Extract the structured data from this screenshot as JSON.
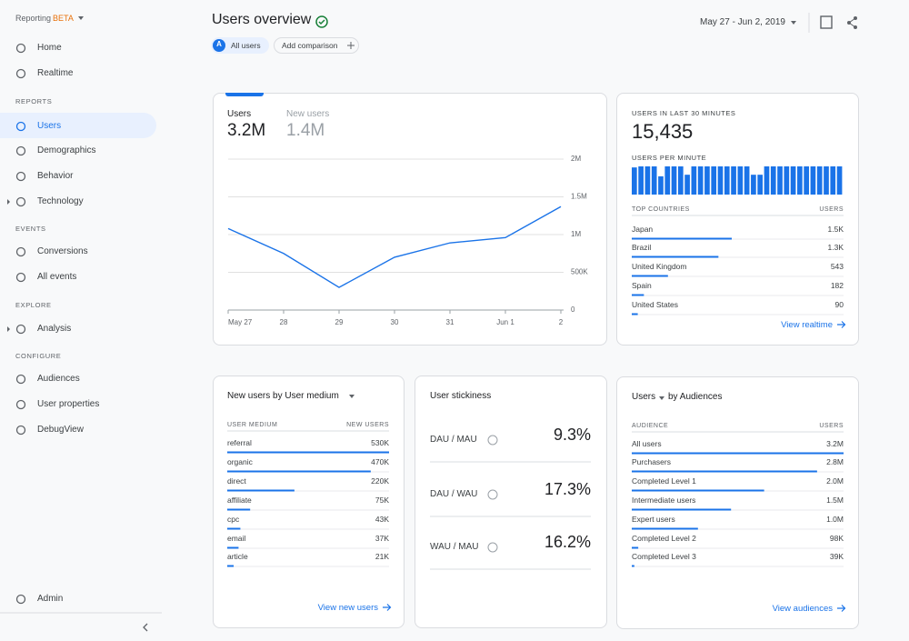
{
  "sidebar": {
    "product": "Reporting",
    "badge": "BETA",
    "nav": [
      "Home",
      "Realtime"
    ],
    "sections": [
      {
        "title": "REPORTS",
        "items": [
          "Users",
          "Demographics",
          "Behavior",
          "Technology"
        ]
      },
      {
        "title": "EVENTS",
        "items": [
          "Conversions",
          "All events"
        ]
      },
      {
        "title": "EXPLORE",
        "items": [
          "Analysis"
        ]
      },
      {
        "title": "CONFIGURE",
        "items": [
          "Audiences",
          "User properties",
          "DebugView"
        ]
      }
    ],
    "admin": "Admin"
  },
  "header": {
    "title": "Users overview",
    "segment_badge": "A",
    "segment": "All users",
    "add_comparison": "Add comparison",
    "date_range": "May 27 - Jun 2, 2019"
  },
  "users_card": {
    "tabs": [
      {
        "label": "Users",
        "value": "3.2M"
      },
      {
        "label": "New users",
        "value": "1.4M"
      }
    ]
  },
  "chart_data": [
    {
      "type": "line",
      "categories": [
        "May 27",
        "28",
        "29",
        "30",
        "31",
        "Jun 1",
        "2"
      ],
      "values": [
        1080000,
        750000,
        300000,
        700000,
        890000,
        960000,
        1370000
      ],
      "color": "#1a73e8",
      "ylim": [
        0,
        2000000
      ],
      "yticks": [
        0,
        {
          "value": 500000,
          "label": "500K"
        },
        {
          "value": 1000000,
          "label": "1M"
        },
        {
          "value": 1500000,
          "label": "1.5M"
        },
        {
          "value": 2000000,
          "label": "2M"
        }
      ],
      "grid": true,
      "y_axis_side": "right"
    },
    {
      "type": "bar",
      "title": "USERS PER MINUTE",
      "color": "#1a73e8",
      "values": [
        520,
        540,
        540,
        540,
        350,
        540,
        540,
        540,
        380,
        540,
        540,
        540,
        540,
        540,
        540,
        540,
        540,
        540,
        380,
        380,
        540,
        540,
        540,
        540,
        540,
        540,
        540,
        540,
        540,
        540,
        540,
        540
      ]
    }
  ],
  "realtime": {
    "title": "USERS IN LAST 30 MINUTES",
    "value": "15,435",
    "col_name": "TOP COUNTRIES",
    "col_value": "USERS",
    "rows": [
      {
        "name": "Japan",
        "value": 1500,
        "label": "1.5K"
      },
      {
        "name": "Brazil",
        "value": 1300,
        "label": "1.3K"
      },
      {
        "name": "United Kingdom",
        "value": 543,
        "label": "543"
      },
      {
        "name": "Spain",
        "value": 182,
        "label": "182"
      },
      {
        "name": "United States",
        "value": 90,
        "label": "90"
      }
    ],
    "link": "View realtime"
  },
  "medium": {
    "title": "New users by User medium",
    "col_name": "USER MEDIUM",
    "col_value": "NEW USERS",
    "rows": [
      {
        "name": "referral",
        "value": 530000,
        "label": "530K"
      },
      {
        "name": "organic",
        "value": 470000,
        "label": "470K"
      },
      {
        "name": "direct",
        "value": 220000,
        "label": "220K"
      },
      {
        "name": "affiliate",
        "value": 75000,
        "label": "75K"
      },
      {
        "name": "cpc",
        "value": 43000,
        "label": "43K"
      },
      {
        "name": "email",
        "value": 37000,
        "label": "37K"
      },
      {
        "name": "article",
        "value": 21000,
        "label": "21K"
      }
    ],
    "link": "View new users"
  },
  "stickiness": {
    "title": "User stickiness",
    "rows": [
      {
        "name": "DAU / MAU",
        "value": "9.3%"
      },
      {
        "name": "DAU / WAU",
        "value": "17.3%"
      },
      {
        "name": "WAU / MAU",
        "value": "16.2%"
      }
    ]
  },
  "audiences": {
    "title": "Users",
    "title_suffix": "by Audiences",
    "col_name": "AUDIENCE",
    "col_value": "USERS",
    "rows": [
      {
        "name": "All users",
        "value": 3200000,
        "label": "3.2M"
      },
      {
        "name": "Purchasers",
        "value": 2800000,
        "label": "2.8M"
      },
      {
        "name": "Completed Level 1",
        "value": 2000000,
        "label": "2.0M"
      },
      {
        "name": "Intermediate users",
        "value": 1500000,
        "label": "1.5M"
      },
      {
        "name": "Expert users",
        "value": 1000000,
        "label": "1.0M"
      },
      {
        "name": "Completed Level 2",
        "value": 98000,
        "label": "98K"
      },
      {
        "name": "Completed Level 3",
        "value": 39000,
        "label": "39K"
      }
    ],
    "link": "View audiences"
  }
}
